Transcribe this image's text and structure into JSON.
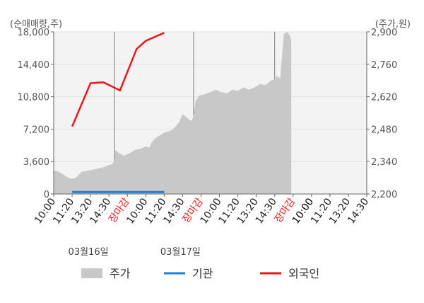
{
  "chart_data": {
    "type": "line",
    "left_axis_label": "(순매매량,주)",
    "right_axis_label": "(주가,원)",
    "left_ticks": [
      "0",
      "3,600",
      "7,200",
      "10,800",
      "14,400",
      "18,000"
    ],
    "left_ylim": [
      0,
      18000
    ],
    "right_ticks": [
      "2,200",
      "2,340",
      "2,480",
      "2,620",
      "2,760",
      "2,900"
    ],
    "right_ylim": [
      2200,
      2900
    ],
    "x_tick_labels": [
      {
        "text": "10:00",
        "color": "#222222"
      },
      {
        "text": "11:20",
        "color": "#222222"
      },
      {
        "text": "13:20",
        "color": "#222222"
      },
      {
        "text": "14:30",
        "color": "#222222"
      },
      {
        "text": "장마감",
        "color": "#e8171a"
      },
      {
        "text": "10:00",
        "color": "#222222"
      },
      {
        "text": "11:20",
        "color": "#222222"
      },
      {
        "text": "14:30",
        "color": "#222222"
      },
      {
        "text": "장마감",
        "color": "#e8171a"
      },
      {
        "text": "10:00",
        "color": "#222222"
      },
      {
        "text": "11:20",
        "color": "#222222"
      },
      {
        "text": "13:20",
        "color": "#222222"
      },
      {
        "text": "14:30",
        "color": "#222222"
      },
      {
        "text": "장마감",
        "color": "#e8171a"
      },
      {
        "text": "10:00",
        "color": "#000000"
      },
      {
        "text": "11:20",
        "color": "#222222"
      },
      {
        "text": "13:20",
        "color": "#222222"
      },
      {
        "text": "14:30",
        "color": "#222222"
      }
    ],
    "date_labels": [
      {
        "text": "03월16일",
        "index": 1.0
      },
      {
        "text": "03월17일",
        "index": 6.0
      }
    ],
    "session_dividers": [
      3.3,
      7.6,
      12.0
    ],
    "price_series": {
      "name": "주가",
      "color": "#c8c8c8",
      "axis": "right",
      "x": [
        0,
        0.2,
        0.4,
        0.6,
        0.8,
        1.0,
        1.2,
        1.5,
        1.8,
        2.1,
        2.4,
        2.7,
        3.0,
        3.2,
        3.3,
        3.35,
        3.5,
        3.8,
        4.1,
        4.4,
        4.7,
        5.0,
        5.2,
        5.3,
        5.5,
        5.8,
        6.0,
        6.2,
        6.4,
        6.6,
        6.8,
        7.0,
        7.3,
        7.5,
        7.6,
        7.7,
        7.9,
        8.2,
        8.5,
        8.8,
        9.1,
        9.4,
        9.7,
        10.0,
        10.3,
        10.6,
        10.9,
        11.2,
        11.5,
        11.8,
        12.0,
        12.1,
        12.3,
        12.5,
        12.7,
        12.85,
        12.9
      ],
      "values": [
        2300,
        2298,
        2290,
        2280,
        2270,
        2265,
        2270,
        2295,
        2300,
        2305,
        2310,
        2315,
        2325,
        2330,
        2345,
        2390,
        2380,
        2365,
        2375,
        2390,
        2395,
        2405,
        2400,
        2420,
        2440,
        2455,
        2465,
        2470,
        2475,
        2490,
        2510,
        2545,
        2525,
        2515,
        2540,
        2600,
        2625,
        2630,
        2640,
        2650,
        2640,
        2635,
        2650,
        2645,
        2660,
        2650,
        2660,
        2675,
        2670,
        2690,
        2695,
        2710,
        2700,
        2890,
        2900,
        2880,
        2860
      ]
    },
    "institution_series": {
      "name": "기관",
      "color": "#1e7fd6",
      "axis": "left",
      "x": [
        1.0,
        6.0
      ],
      "values": [
        220,
        220
      ]
    },
    "foreign_series": {
      "name": "외국인",
      "color": "#e8171a",
      "axis": "left",
      "x": [
        1.0,
        2.0,
        2.7,
        3.6,
        4.5,
        5.0,
        6.0
      ],
      "values": [
        7500,
        12300,
        12400,
        11500,
        16100,
        17000,
        17900
      ]
    }
  },
  "legend": [
    {
      "label": "주가",
      "kind": "area",
      "color": "#c8c8c8"
    },
    {
      "label": "기관",
      "kind": "line",
      "color": "#1e7fd6"
    },
    {
      "label": "외국인",
      "kind": "line",
      "color": "#e8171a"
    }
  ]
}
